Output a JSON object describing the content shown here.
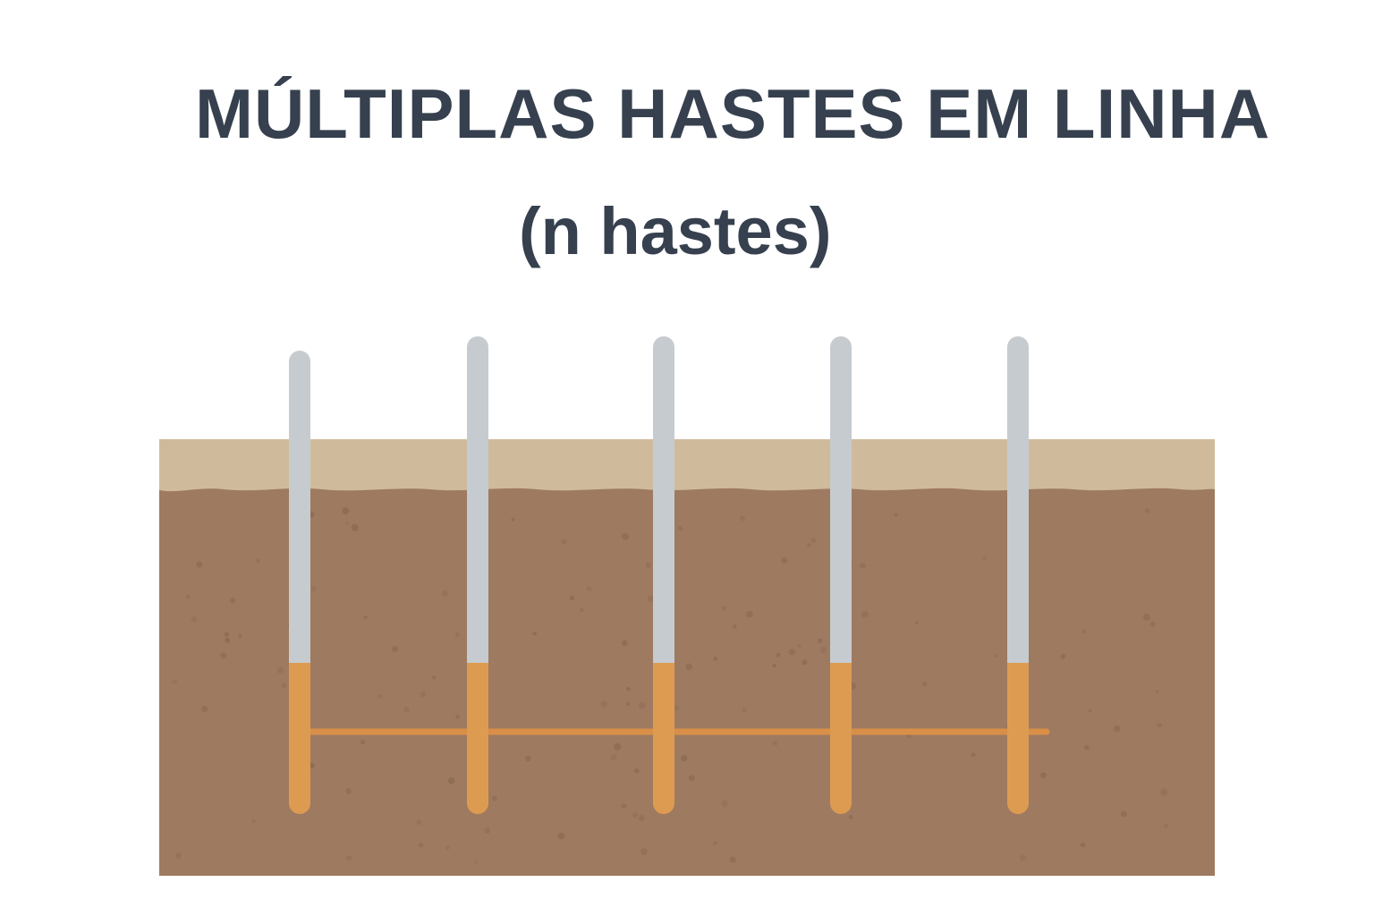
{
  "title": "MÚLTIPLAS HASTES EM LINHA",
  "subtitle": "(n hastes)",
  "rod_count": 5,
  "colors": {
    "text": "#36404e",
    "topsoil": "#cfbb9c",
    "soil": "#9e7a60",
    "soil_speckle": "#8a6a52",
    "rod_exposed": "#c6cbd0",
    "rod_buried": "#dd9b52",
    "conductor": "#d98f48"
  }
}
